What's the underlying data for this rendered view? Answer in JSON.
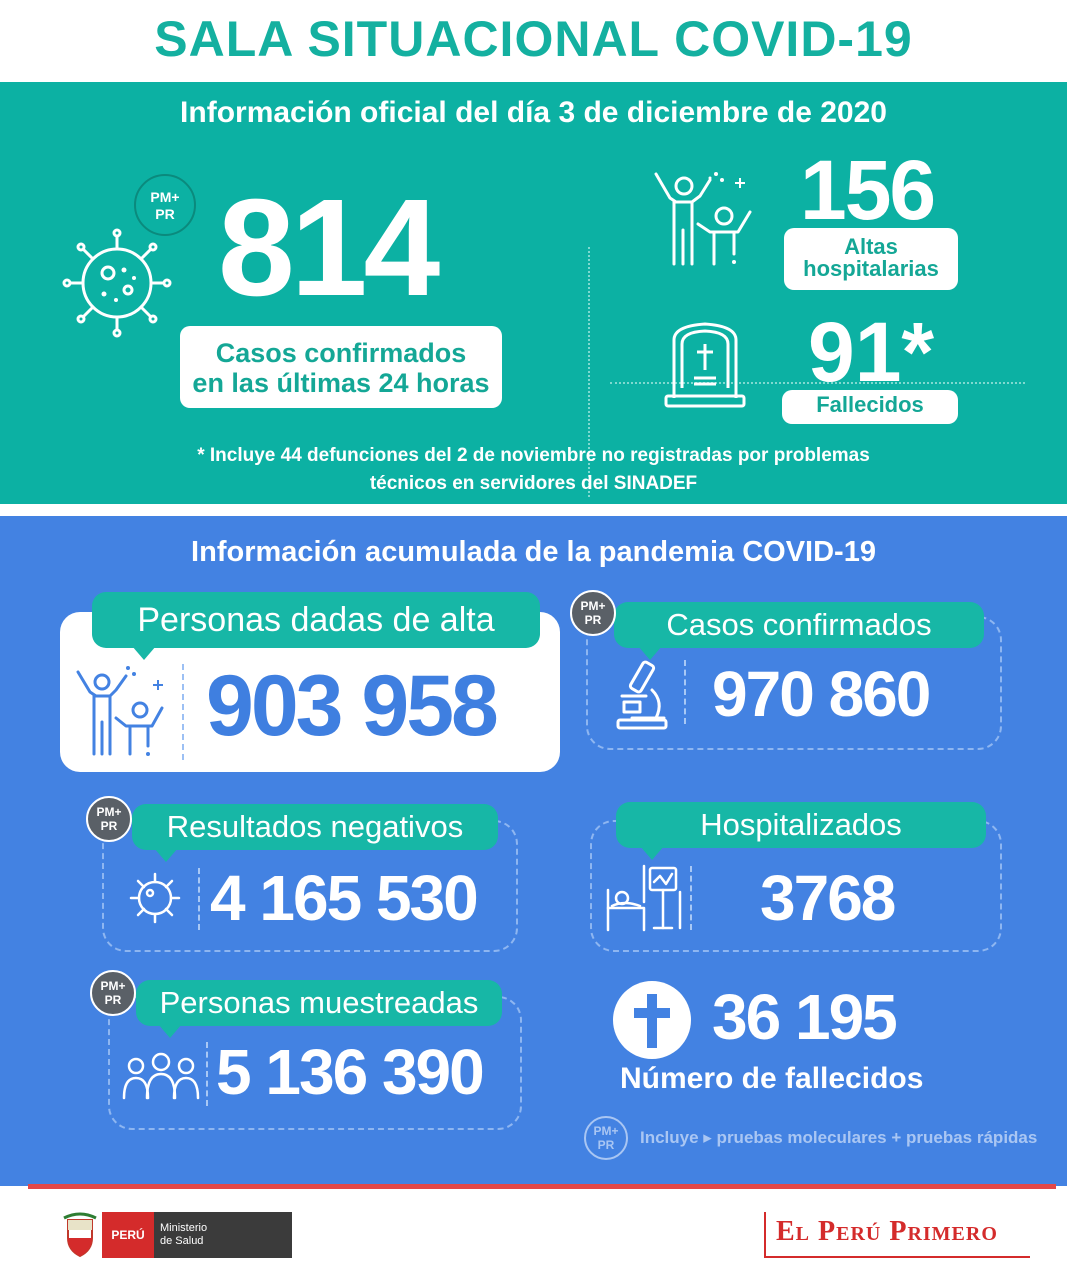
{
  "title": "SALA SITUACIONAL COVID-19",
  "daily": {
    "heading": "Información oficial del día 3 de diciembre de 2020",
    "pm_badge_line1": "PM+",
    "pm_badge_line2": "PR",
    "cases_value": "814",
    "cases_label_line1": "Casos confirmados",
    "cases_label_line2": "en las últimas 24 horas",
    "discharges_value": "156",
    "discharges_label_line1": "Altas",
    "discharges_label_line2": "hospitalarias",
    "deaths_value": "91*",
    "deaths_label": "Fallecidos",
    "note_line1": "* Incluye 44 defunciones del 2 de noviembre no registradas por problemas",
    "note_line2": "técnicos en servidores del SINADEF"
  },
  "cumulative": {
    "heading": "Información acumulada de la pandemia COVID-19",
    "pm_line1": "PM+",
    "pm_line2": "PR",
    "discharged_label": "Personas dadas de alta",
    "discharged_value": "903 958",
    "confirmed_label": "Casos confirmados",
    "confirmed_value": "970 860",
    "negative_label": "Resultados negativos",
    "negative_value": "4 165 530",
    "hospitalized_label": "Hospitalizados",
    "hospitalized_value": "3768",
    "sampled_label": "Personas muestreadas",
    "sampled_value": "5 136 390",
    "deaths_value": "36 195",
    "deaths_label": "Número de fallecidos",
    "legend_text": "Incluye ▸ pruebas moleculares +  pruebas rápidas"
  },
  "footer": {
    "peru": "PERÚ",
    "ministry_line1": "Ministerio",
    "ministry_line2": "de Salud",
    "brand": "El Perú Primero"
  },
  "colors": {
    "teal": "#0cb1a3",
    "blue": "#4382e2",
    "title_teal": "#14b0a0",
    "red": "#d42b2b"
  }
}
